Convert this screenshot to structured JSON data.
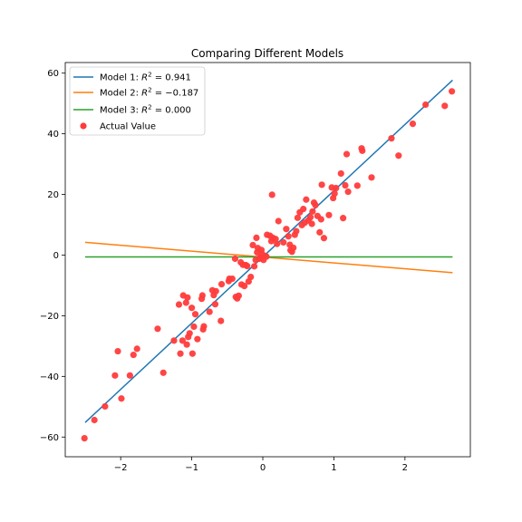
{
  "chart_data": {
    "type": "scatter",
    "title": "Comparing Different Models",
    "xlabel": "",
    "ylabel": "",
    "xlim": [
      -2.78,
      2.92
    ],
    "ylim": [
      -66.5,
      63.5
    ],
    "x_ticks": [
      -2,
      -1,
      0,
      1,
      2
    ],
    "x_tick_labels": [
      "−2",
      "−1",
      "0",
      "1",
      "2"
    ],
    "y_ticks": [
      -60,
      -40,
      -20,
      0,
      20,
      40,
      60
    ],
    "y_tick_labels": [
      "−60",
      "−40",
      "−20",
      "0",
      "20",
      "40",
      "60"
    ],
    "grid": false,
    "legend": "upper left",
    "models": [
      {
        "name": "Model 1",
        "r2": "0.941",
        "color": "#1f77b4",
        "x": [
          -2.5,
          2.67
        ],
        "y": [
          -55.2,
          57.7
        ]
      },
      {
        "name": "Model 2",
        "r2": "−0.187",
        "color": "#ff7f0e",
        "x": [
          -2.5,
          2.67
        ],
        "y": [
          4.2,
          -5.8
        ]
      },
      {
        "name": "Model 3",
        "r2": "0.000",
        "color": "#2ca02c",
        "x": [
          -2.5,
          2.67
        ],
        "y": [
          -0.6,
          -0.6
        ]
      }
    ],
    "actual": {
      "name": "Actual Value",
      "color": "#ff3b3b",
      "points": [
        [
          -2.51,
          -60.4
        ],
        [
          -2.37,
          -54.4
        ],
        [
          -2.22,
          -49.9
        ],
        [
          -2.08,
          -39.7
        ],
        [
          -2.04,
          -31.7
        ],
        [
          -1.99,
          -47.3
        ],
        [
          -1.87,
          -39.7
        ],
        [
          -1.82,
          -32.9
        ],
        [
          -1.77,
          -30.9
        ],
        [
          -1.48,
          -24.3
        ],
        [
          -1.4,
          -38.8
        ],
        [
          -1.25,
          -28.2
        ],
        [
          -1.18,
          -16.3
        ],
        [
          -1.16,
          -32.5
        ],
        [
          -1.13,
          -28.2
        ],
        [
          -1.12,
          -13.3
        ],
        [
          -1.08,
          -15.7
        ],
        [
          -1.07,
          -29.5
        ],
        [
          -1.06,
          -14.0
        ],
        [
          -1.05,
          -27.0
        ],
        [
          -1.03,
          -25.8
        ],
        [
          -1.0,
          -17.4
        ],
        [
          -0.99,
          -32.5
        ],
        [
          -0.97,
          -23.6
        ],
        [
          -0.95,
          -19.5
        ],
        [
          -0.92,
          -27.7
        ],
        [
          -0.86,
          -14.4
        ],
        [
          -0.85,
          -13.3
        ],
        [
          -0.84,
          -24.5
        ],
        [
          -0.83,
          -23.5
        ],
        [
          -0.75,
          -18.7
        ],
        [
          -0.71,
          -11.6
        ],
        [
          -0.69,
          -13.2
        ],
        [
          -0.67,
          -16.2
        ],
        [
          -0.66,
          -11.9
        ],
        [
          -0.59,
          -21.7
        ],
        [
          -0.58,
          -9.6
        ],
        [
          -0.48,
          -8.6
        ],
        [
          -0.47,
          -7.8
        ],
        [
          -0.43,
          -7.8
        ],
        [
          -0.39,
          -1.2
        ],
        [
          -0.38,
          -13.8
        ],
        [
          -0.36,
          -14.3
        ],
        [
          -0.34,
          -13.4
        ],
        [
          -0.31,
          -2.4
        ],
        [
          -0.3,
          -9.7
        ],
        [
          -0.28,
          -3.2
        ],
        [
          -0.26,
          -10.2
        ],
        [
          -0.24,
          -3.3
        ],
        [
          -0.22,
          -3.6
        ],
        [
          -0.2,
          -8.7
        ],
        [
          -0.17,
          -7.2
        ],
        [
          -0.14,
          3.3
        ],
        [
          -0.12,
          -3.7
        ],
        [
          -0.1,
          -1.6
        ],
        [
          -0.09,
          5.7
        ],
        [
          -0.08,
          0.9
        ],
        [
          -0.07,
          2.3
        ],
        [
          -0.05,
          -1.2
        ],
        [
          -0.04,
          -0.9
        ],
        [
          -0.02,
          1.7
        ],
        [
          -0.01,
          0.4
        ],
        [
          0.01,
          -1.6
        ],
        [
          0.03,
          -0.3
        ],
        [
          0.05,
          -0.5
        ],
        [
          0.06,
          6.7
        ],
        [
          0.1,
          6.4
        ],
        [
          0.12,
          4.6
        ],
        [
          0.13,
          19.9
        ],
        [
          0.14,
          5.7
        ],
        [
          0.18,
          5.3
        ],
        [
          0.2,
          3.7
        ],
        [
          0.22,
          11.2
        ],
        [
          0.29,
          4.2
        ],
        [
          0.33,
          8.6
        ],
        [
          0.36,
          6.2
        ],
        [
          0.38,
          3.4
        ],
        [
          0.39,
          1.6
        ],
        [
          0.41,
          1.1
        ],
        [
          0.43,
          2.4
        ],
        [
          0.45,
          6.7
        ],
        [
          0.47,
          7.9
        ],
        [
          0.49,
          12.3
        ],
        [
          0.52,
          14.1
        ],
        [
          0.55,
          9.9
        ],
        [
          0.57,
          15.2
        ],
        [
          0.59,
          10.7
        ],
        [
          0.61,
          18.3
        ],
        [
          0.64,
          11.4
        ],
        [
          0.67,
          12.5
        ],
        [
          0.69,
          10.3
        ],
        [
          0.7,
          14.4
        ],
        [
          0.72,
          17.3
        ],
        [
          0.74,
          16.5
        ],
        [
          0.77,
          12.9
        ],
        [
          0.8,
          7.5
        ],
        [
          0.82,
          11.8
        ],
        [
          0.83,
          23.2
        ],
        [
          0.86,
          5.6
        ],
        [
          0.93,
          13.2
        ],
        [
          0.97,
          22.3
        ],
        [
          0.99,
          18.8
        ],
        [
          1.01,
          20.3
        ],
        [
          1.03,
          22.1
        ],
        [
          1.1,
          26.9
        ],
        [
          1.13,
          12.2
        ],
        [
          1.16,
          23.0
        ],
        [
          1.18,
          33.3
        ],
        [
          1.2,
          20.9
        ],
        [
          1.33,
          22.9
        ],
        [
          1.39,
          35.2
        ],
        [
          1.4,
          34.4
        ],
        [
          1.53,
          25.6
        ],
        [
          1.81,
          38.5
        ],
        [
          1.91,
          32.8
        ],
        [
          2.11,
          43.3
        ],
        [
          2.29,
          49.6
        ],
        [
          2.56,
          49.2
        ],
        [
          2.66,
          54.0
        ]
      ]
    }
  }
}
